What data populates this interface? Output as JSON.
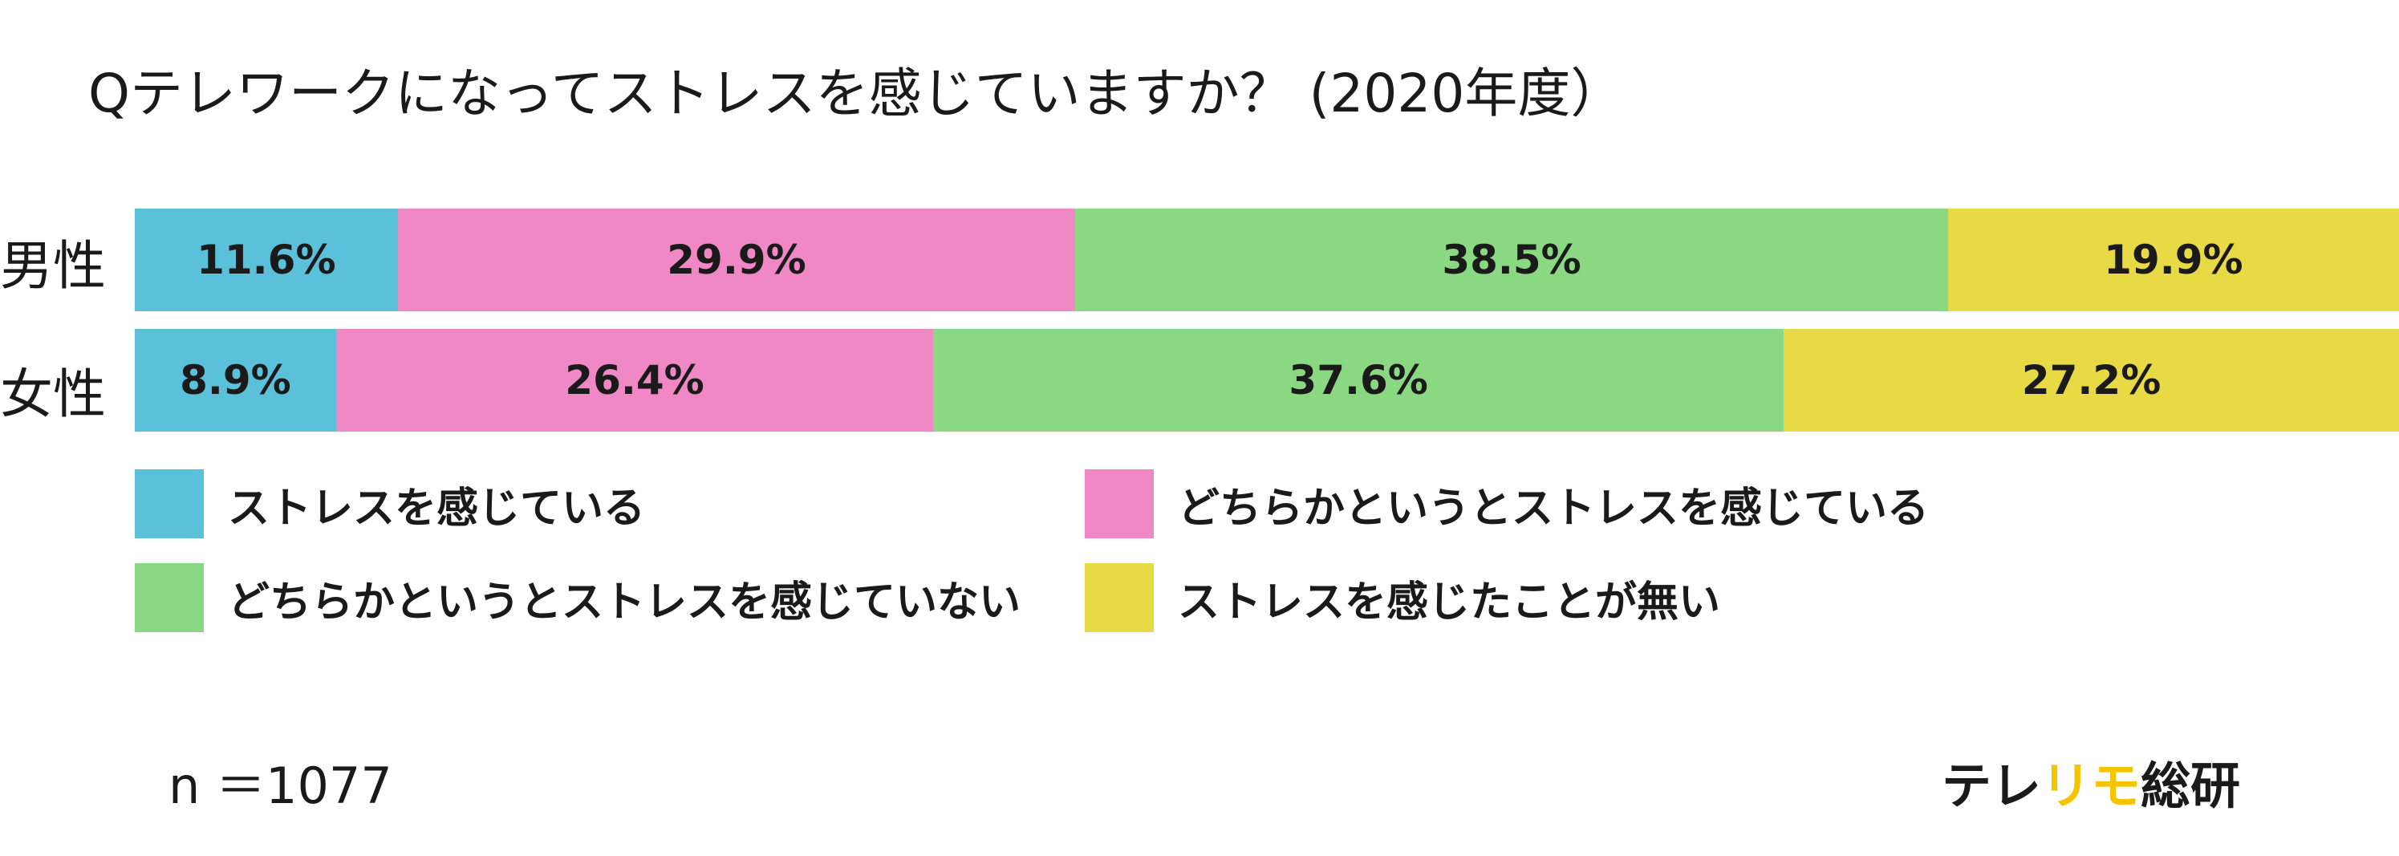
{
  "title": "Qテレワークになってストレスを感じていますか？ (2020年度）",
  "chart_data": {
    "type": "bar",
    "orientation": "horizontal",
    "stacked": true,
    "value_unit": "%",
    "categories": [
      "男性",
      "女性"
    ],
    "series": [
      {
        "name": "ストレスを感じている",
        "color": "#5bc0d9",
        "values": [
          11.6,
          8.9
        ],
        "labels": [
          "11.6%",
          "8.9%"
        ]
      },
      {
        "name": "どちらかというとストレスを感じている",
        "color": "#f088c6",
        "values": [
          29.9,
          26.4
        ],
        "labels": [
          "29.9%",
          "26.4%"
        ]
      },
      {
        "name": "どちらかというとストレスを感じていない",
        "color": "#8ad982",
        "values": [
          38.5,
          37.6
        ],
        "labels": [
          "38.5%",
          "37.6%"
        ]
      },
      {
        "name": "ストレスを感じたことが無い",
        "color": "#e8da44",
        "values": [
          19.9,
          27.2
        ],
        "labels": [
          "19.9%",
          "27.2%"
        ]
      }
    ],
    "legend_position": "bottom",
    "grid": false
  },
  "sample_size": "n ＝1077",
  "brand": {
    "part1": "テレ",
    "part2": "リモ",
    "part3": "総研",
    "accent_color": "#f5c400"
  }
}
